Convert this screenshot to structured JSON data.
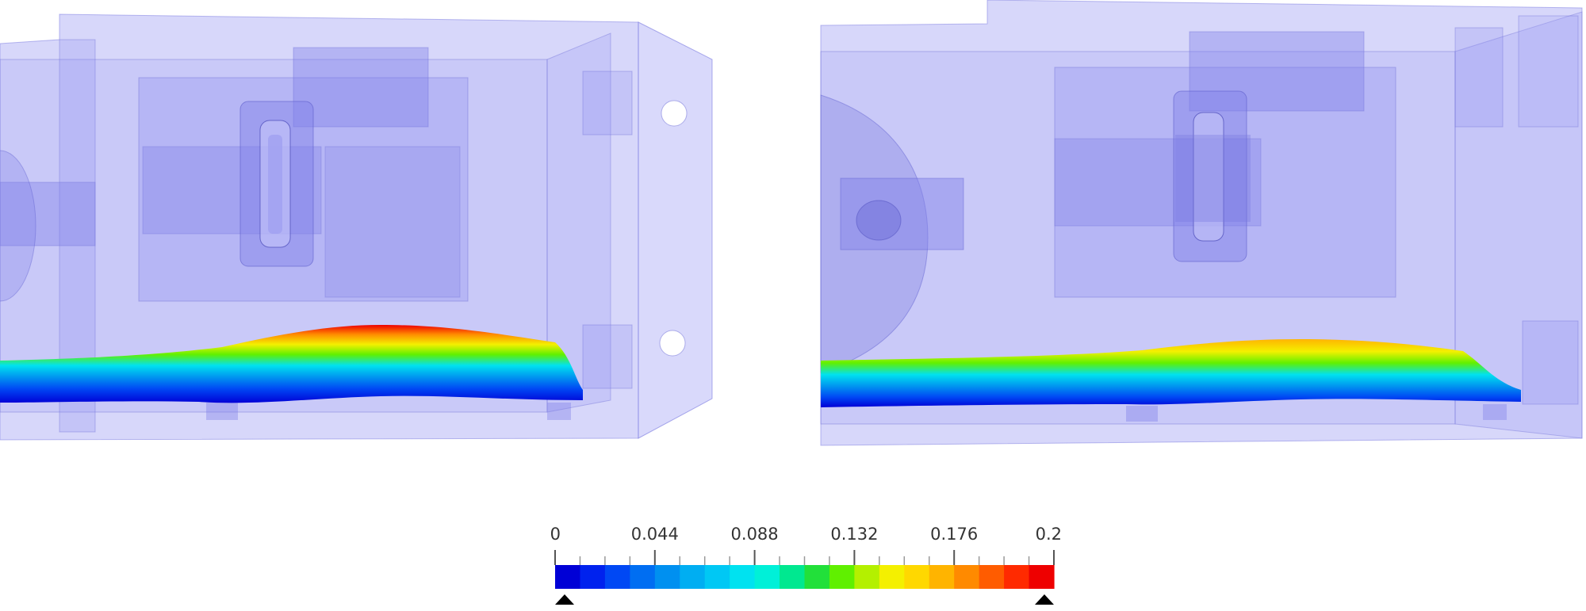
{
  "legend": {
    "tick_labels": [
      "0",
      "0.044",
      "0.088",
      "0.132",
      "0.176",
      "0.22"
    ],
    "range": [
      0,
      0.22
    ],
    "bins": 20,
    "colormap": [
      "#0000d6",
      "#0022ee",
      "#0048f4",
      "#006ef2",
      "#0090f0",
      "#00aef2",
      "#00c8f4",
      "#00e2f0",
      "#00f0d8",
      "#00e890",
      "#22e03a",
      "#60f000",
      "#b4f000",
      "#f4f000",
      "#ffd800",
      "#ffb400",
      "#ff8a00",
      "#ff5c00",
      "#ff2a00",
      "#ee0000"
    ]
  },
  "colors": {
    "housing": "#8c8cf0",
    "background": "#ffffff"
  }
}
